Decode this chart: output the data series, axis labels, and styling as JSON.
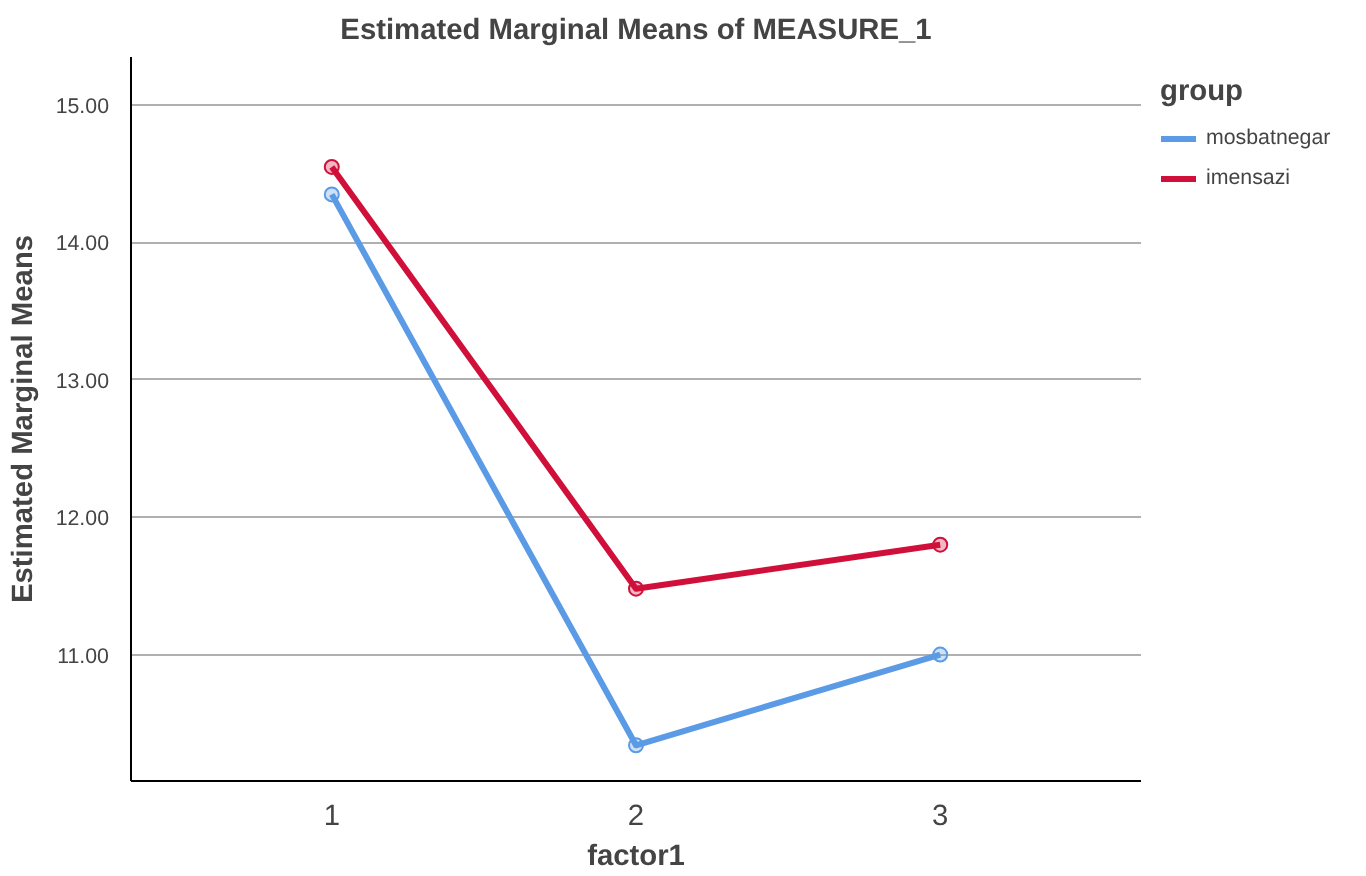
{
  "chart_data": {
    "type": "line",
    "title": "Estimated Marginal Means of MEASURE_1",
    "xlabel": "factor1",
    "ylabel": "Estimated Marginal Means",
    "legend_title": "group",
    "categories": [
      "1",
      "2",
      "3"
    ],
    "series": [
      {
        "name": "mosbatnegar",
        "color": "#5b9be6",
        "values": [
          14.35,
          10.34,
          11.0
        ]
      },
      {
        "name": "imensazi",
        "color": "#d0103a",
        "values": [
          14.55,
          11.48,
          11.8
        ]
      }
    ],
    "ylim": [
      10.08,
      15.35
    ],
    "yticks": [
      {
        "value": 11,
        "label": "11.00"
      },
      {
        "value": 12,
        "label": "12.00"
      },
      {
        "value": 13,
        "label": "13.00"
      },
      {
        "value": 14,
        "label": "14.00"
      },
      {
        "value": 15,
        "label": "15.00"
      }
    ],
    "grid": "y",
    "legend": "top right",
    "marker": "circle",
    "line_style": "solid"
  }
}
